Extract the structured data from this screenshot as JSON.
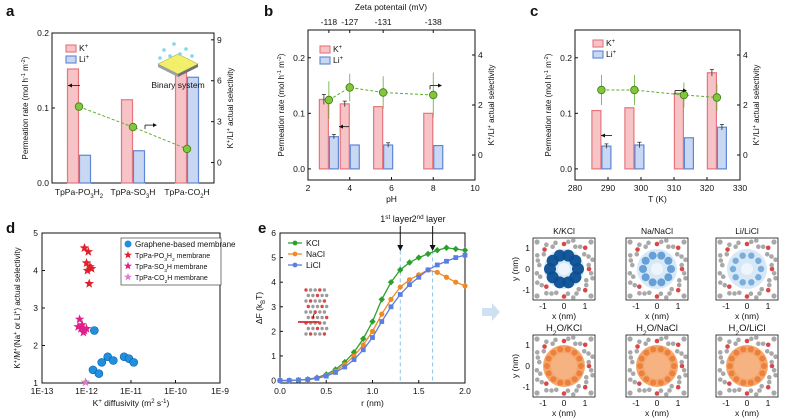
{
  "colors": {
    "k": "#e8747c",
    "k_fill": "#f6c3c6",
    "li": "#5d86d6",
    "li_fill": "#c9d8f2",
    "selectivity": "#5fae2e",
    "selectivity_fill": "#84c63a",
    "graphene": "#1f8fe0",
    "po3h2": "#e0202a",
    "so3h": "#e0208a",
    "co2h": "#e07ad8",
    "kcl": "#2ca02c",
    "nacl": "#f08a24",
    "licl": "#5b7ee0",
    "guide": "#7fbfe8"
  },
  "panels": [
    {
      "key": "a",
      "label": "a"
    },
    {
      "key": "b",
      "label": "b"
    },
    {
      "key": "c",
      "label": "c"
    },
    {
      "key": "d",
      "label": "d"
    },
    {
      "key": "e",
      "label": "e"
    }
  ],
  "chart_data": [
    {
      "id": "a",
      "type": "bar",
      "categories": [
        "TpPa-PO3H2",
        "TpPa-SO3H",
        "TpPa-CO2H"
      ],
      "category_labels": [
        {
          "base": "TpPa-PO",
          "sub": "3",
          "tail": "H",
          "sub2": "2"
        },
        {
          "base": "TpPa-SO",
          "sub": "3",
          "tail": "H",
          "sub2": ""
        },
        {
          "base": "TpPa-CO",
          "sub": "2",
          "tail": "H",
          "sub2": ""
        }
      ],
      "series": [
        {
          "name": "K+",
          "label": "K",
          "sup": "+",
          "values": [
            0.152,
            0.111,
            0.147
          ]
        },
        {
          "name": "Li+",
          "label": "Li",
          "sup": "+",
          "values": [
            0.037,
            0.043,
            0.141
          ]
        }
      ],
      "line": {
        "name": "K+/Li+ actual selectivity",
        "values": [
          4.1,
          2.6,
          1.0
        ]
      },
      "ylabel": "Permeation rate (mol h⁻¹ m⁻²)",
      "y2label": "K⁺/Li⁺ actual selectivity",
      "ylim": [
        0,
        0.2
      ],
      "yticks": [
        "0.0",
        "0.1",
        "0.2"
      ],
      "y2lim": [
        -1.5,
        9.5
      ],
      "y2ticks": [
        "0",
        "3",
        "6",
        "9"
      ],
      "annotation": "Binary system"
    },
    {
      "id": "b",
      "type": "bar",
      "top_axis_label": "Zeta potentail (mV)",
      "top_ticks": [
        {
          "x": 3,
          "label": "-118"
        },
        {
          "x": 4,
          "label": "-127"
        },
        {
          "x": 5.6,
          "label": "-131"
        },
        {
          "x": 8,
          "label": "-138"
        }
      ],
      "x": [
        3,
        4,
        5.6,
        8
      ],
      "series": [
        {
          "name": "K+",
          "label": "K",
          "sup": "+",
          "values": [
            0.125,
            0.117,
            0.112,
            0.1
          ],
          "errors": [
            0.009,
            0.005,
            0,
            0
          ]
        },
        {
          "name": "Li+",
          "label": "Li",
          "sup": "+",
          "values": [
            0.058,
            0.043,
            0.043,
            0.042
          ],
          "errors": [
            0.004,
            0,
            0.004,
            0
          ]
        }
      ],
      "line": {
        "name": "K+/Li+ actual selectivity",
        "x": [
          3,
          4,
          5.6,
          8
        ],
        "values": [
          2.2,
          2.7,
          2.5,
          2.4
        ],
        "errors": [
          0.75,
          0.55,
          0.65,
          0.9
        ]
      },
      "xlabel": "pH",
      "xlim": [
        2,
        10
      ],
      "xticks": [
        "2",
        "4",
        "6",
        "8",
        "10"
      ],
      "ylabel": "Permeation rate (mol h⁻¹ m⁻²)",
      "y2label": "K⁺/Li⁺ actual selectivity",
      "ylim": [
        -0.02,
        0.25
      ],
      "yticks": [
        "0.0",
        "0.1",
        "0.2"
      ],
      "y2lim": [
        -1,
        5
      ],
      "y2ticks": [
        "0",
        "2",
        "4"
      ]
    },
    {
      "id": "c",
      "type": "bar",
      "x": [
        288,
        298,
        313,
        323
      ],
      "series": [
        {
          "name": "K+",
          "label": "K",
          "sup": "+",
          "values": [
            0.105,
            0.11,
            0.136,
            0.173
          ],
          "errors": [
            0,
            0,
            0,
            0.006
          ]
        },
        {
          "name": "Li+",
          "label": "Li",
          "sup": "+",
          "values": [
            0.041,
            0.043,
            0.056,
            0.075
          ],
          "errors": [
            0.004,
            0.005,
            0,
            0.005
          ]
        }
      ],
      "line": {
        "name": "K+/Li+ actual selectivity",
        "x": [
          288,
          298,
          313,
          323
        ],
        "values": [
          2.6,
          2.6,
          2.4,
          2.3
        ],
        "errors": [
          0.6,
          0.6,
          0.5,
          0.55
        ]
      },
      "xlabel": "T (K)",
      "xlim": [
        280,
        330
      ],
      "xticks": [
        "280",
        "290",
        "300",
        "310",
        "320",
        "330"
      ],
      "ylabel": "Permeation rate (mol h⁻¹ m⁻²)",
      "y2label": "K⁺/Li⁺ actual selectivity",
      "ylim": [
        -0.02,
        0.25
      ],
      "yticks": [
        "0.0",
        "0.1",
        "0.2"
      ],
      "y2lim": [
        -1,
        5
      ],
      "y2ticks": [
        "0",
        "2",
        "4"
      ]
    },
    {
      "id": "d",
      "type": "scatter",
      "xlabel": "K⁺ diffusivity (m² s⁻¹)",
      "ylabel": "K⁺/M⁺(Na⁺ or Li⁺) actual selectivity",
      "xscale": "log",
      "xlim": [
        1e-13,
        1e-09
      ],
      "xticks": [
        "1E-13",
        "1E-12",
        "1E-11",
        "1E-10",
        "1E-9"
      ],
      "ylim": [
        1,
        5
      ],
      "yticks": [
        "1",
        "2",
        "3",
        "4",
        "5"
      ],
      "legend_position": "top-right",
      "series": [
        {
          "name": "Graphene-based membrane",
          "marker": "circle",
          "points": [
            [
              1.5e-12,
              2.4
            ],
            [
              1.4e-12,
              1.35
            ],
            [
              1.9e-12,
              1.25
            ],
            [
              2.2e-12,
              1.55
            ],
            [
              3e-12,
              1.7
            ],
            [
              4e-12,
              1.6
            ],
            [
              7e-12,
              1.7
            ],
            [
              9e-12,
              1.65
            ],
            [
              1.15e-11,
              1.55
            ]
          ]
        },
        {
          "name": "TpPa-PO3H2 membrane",
          "label_base": "TpPa-PO",
          "label_sub": "3",
          "label_tail": "H",
          "label_sub2": "2",
          "label_end": " membrane",
          "marker": "star",
          "points": [
            [
              9e-13,
              4.6
            ],
            [
              1.1e-12,
              4.5
            ],
            [
              1e-12,
              4.2
            ],
            [
              1.2e-12,
              4.1
            ],
            [
              1.05e-12,
              4.0
            ],
            [
              1.3e-12,
              4.05
            ],
            [
              1.15e-12,
              3.65
            ]
          ]
        },
        {
          "name": "TpPa-SO3H membrane",
          "label_base": "TpPa-SO",
          "label_sub": "3",
          "label_tail": "H",
          "label_sub2": "",
          "label_end": " membrane",
          "marker": "star",
          "points": [
            [
              7e-13,
              2.7
            ],
            [
              8e-13,
              2.55
            ],
            [
              6.5e-13,
              2.5
            ],
            [
              7.5e-13,
              2.45
            ],
            [
              9e-13,
              2.4
            ],
            [
              1e-12,
              2.45
            ],
            [
              8.5e-13,
              2.35
            ]
          ]
        },
        {
          "name": "TpPa-CO2H membrane",
          "label_base": "TpPa-CO",
          "label_sub": "2",
          "label_tail": "H",
          "label_sub2": "",
          "label_end": " membrane",
          "marker": "star",
          "points": [
            [
              9.5e-13,
              1.02
            ]
          ]
        }
      ]
    },
    {
      "id": "e",
      "type": "line",
      "xlabel": "r (nm)",
      "ylabel": "ΔF (k_BT)",
      "xlim": [
        0,
        2.0
      ],
      "xticks": [
        "0.0",
        "0.5",
        "1.0",
        "1.5",
        "2.0"
      ],
      "ylim": [
        -0.1,
        6.0
      ],
      "yticks": [
        "0",
        "1",
        "2",
        "3",
        "4",
        "5",
        "6"
      ],
      "legend_position": "top-left",
      "annotations": [
        {
          "text": "1st layer",
          "base": "1",
          "sup": "st",
          "tail": " layer",
          "x": 1.3
        },
        {
          "text": "2nd layer",
          "base": "2",
          "sup": "nd",
          "tail": " layer",
          "x": 1.65
        }
      ],
      "x": [
        0,
        0.1,
        0.2,
        0.3,
        0.4,
        0.5,
        0.6,
        0.7,
        0.8,
        0.9,
        1.0,
        1.1,
        1.2,
        1.3,
        1.4,
        1.5,
        1.6,
        1.7,
        1.8,
        1.9,
        2.0
      ],
      "series": [
        {
          "name": "KCl",
          "marker": "diamond",
          "values": [
            0,
            0,
            0.02,
            0.05,
            0.12,
            0.25,
            0.45,
            0.75,
            1.15,
            1.7,
            2.4,
            3.3,
            4.0,
            4.5,
            4.8,
            5.0,
            5.15,
            5.3,
            5.4,
            5.35,
            5.3
          ]
        },
        {
          "name": "NaCl",
          "marker": "circle",
          "values": [
            0,
            0,
            0.02,
            0.04,
            0.1,
            0.2,
            0.38,
            0.65,
            1.0,
            1.45,
            2.0,
            2.7,
            3.3,
            3.8,
            4.1,
            4.3,
            4.5,
            4.4,
            4.2,
            4.0,
            3.85
          ]
        },
        {
          "name": "LiCl",
          "marker": "square",
          "values": [
            0,
            0,
            0.02,
            0.04,
            0.09,
            0.18,
            0.33,
            0.55,
            0.85,
            1.25,
            1.75,
            2.4,
            3.0,
            3.5,
            3.9,
            4.2,
            4.5,
            4.7,
            4.85,
            5.0,
            5.1
          ]
        }
      ]
    }
  ],
  "maps": {
    "cells": [
      {
        "title": "K/KCl",
        "row": 0,
        "kind": "ion",
        "color": "#0b4f93",
        "strength": 1.0
      },
      {
        "title": "Na/NaCl",
        "row": 0,
        "kind": "ion",
        "color": "#2a79c4",
        "strength": 0.5
      },
      {
        "title": "Li/LiCl",
        "row": 0,
        "kind": "ion",
        "color": "#2a79c4",
        "strength": 0.3
      },
      {
        "title": "H2O/KCl",
        "base": "H",
        "sub": "2",
        "tail": "O/KCl",
        "row": 1,
        "kind": "water",
        "color": "#f0883a",
        "strength": 0.85
      },
      {
        "title": "H2O/NaCl",
        "base": "H",
        "sub": "2",
        "tail": "O/NaCl",
        "row": 1,
        "kind": "water",
        "color": "#f0883a",
        "strength": 0.85
      },
      {
        "title": "H2O/LiCl",
        "base": "H",
        "sub": "2",
        "tail": "O/LiCl",
        "row": 1,
        "kind": "water",
        "color": "#f0883a",
        "strength": 0.85
      }
    ],
    "xlabel": "x (nm)",
    "ylabel": "y (nm)",
    "ticks": [
      "-1",
      "0",
      "1"
    ]
  }
}
